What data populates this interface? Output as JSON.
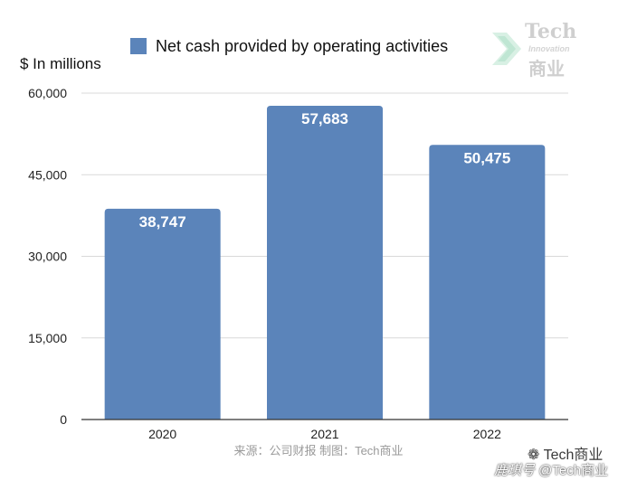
{
  "chart_data": {
    "type": "bar",
    "categories": [
      "2020",
      "2021",
      "2022"
    ],
    "series": [
      {
        "name": "Net cash provided by operating activities",
        "values": [
          38747,
          57683,
          50475
        ]
      }
    ],
    "data_labels": [
      "38,747",
      "57,683",
      "50,475"
    ],
    "ylabel": "$ In millions",
    "ylim": [
      0,
      60000
    ],
    "yticks": [
      0,
      15000,
      30000,
      45000,
      60000
    ],
    "ytick_labels": [
      "0",
      "15,000",
      "30,000",
      "45,000",
      "60,000"
    ],
    "grid": true,
    "legend_position": "top-center",
    "bar_color": "#5b84ba"
  },
  "watermark": {
    "title": "Tech",
    "subtitle": "Innovation",
    "cn": "商业"
  },
  "footer": {
    "source": "来源：公司财报 制图：Tech商业",
    "badge_primary": "Tech商业",
    "badge_secondary_prefix": "鹿琪号",
    "badge_secondary": " @Tech商业"
  }
}
